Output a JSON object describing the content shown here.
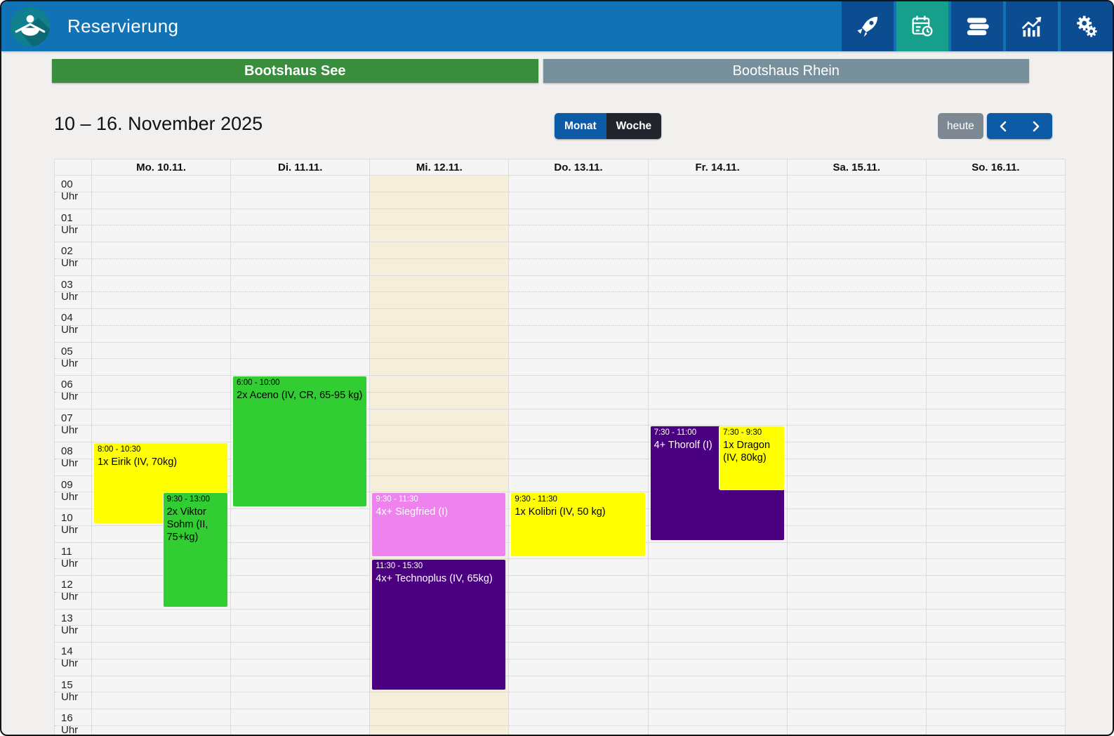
{
  "app": {
    "title": "Reservierung"
  },
  "navbar": {
    "icons": [
      {
        "name": "rocket-icon",
        "active": false
      },
      {
        "name": "calendar-clock-icon",
        "active": true
      },
      {
        "name": "books-icon",
        "active": false
      },
      {
        "name": "chart-icon",
        "active": false
      },
      {
        "name": "settings-gears-icon",
        "active": false
      }
    ],
    "colors": {
      "bar": "#1173b5",
      "button": "#0c4d92",
      "active_button": "#16a08c"
    }
  },
  "tabs": [
    {
      "label": "Bootshaus See",
      "active": true,
      "color": "#388e3c"
    },
    {
      "label": "Bootshaus Rhein",
      "active": false,
      "color": "#78909c"
    }
  ],
  "toolbar": {
    "date_range": "10 – 16. November 2025",
    "view_buttons": [
      {
        "label": "Monat",
        "active": false,
        "color": "#0d5aa7"
      },
      {
        "label": "Woche",
        "active": true,
        "color": "#21262e"
      }
    ],
    "today_label": "heute"
  },
  "calendar": {
    "day_headers": [
      "Mo. 10.11.",
      "Di. 11.11.",
      "Mi. 12.11.",
      "Do. 13.11.",
      "Fr. 14.11.",
      "Sa. 15.11.",
      "So. 16.11."
    ],
    "today_column_index": 2,
    "today_highlight_color": "#f4eedb",
    "hour_labels": [
      "00 Uhr",
      "01 Uhr",
      "02 Uhr",
      "03 Uhr",
      "04 Uhr",
      "05 Uhr",
      "06 Uhr",
      "07 Uhr",
      "08 Uhr",
      "09 Uhr",
      "10 Uhr",
      "11 Uhr",
      "12 Uhr",
      "13 Uhr",
      "14 Uhr",
      "15 Uhr",
      "16 Uhr"
    ],
    "events": [
      {
        "day": 0,
        "time_label": "8:00 - 10:30",
        "title": "1x Eirik (IV, 70kg)",
        "color": "#ffff00",
        "text_color": "#000000",
        "start_h": 8.0,
        "end_h": 10.5,
        "left_pct": 0
      },
      {
        "day": 0,
        "time_label": "9:30 - 13:00",
        "title": "2x Viktor Sohm (II, 75+kg)",
        "color": "#32cd32",
        "text_color": "#000000",
        "start_h": 9.5,
        "end_h": 13.0,
        "left_pct": 50
      },
      {
        "day": 1,
        "time_label": "6:00 - 10:00",
        "title": "2x Aceno (IV, CR, 65-95 kg)",
        "color": "#32cd32",
        "text_color": "#000000",
        "start_h": 6.0,
        "end_h": 10.0,
        "left_pct": 0
      },
      {
        "day": 2,
        "time_label": "9:30 - 11:30",
        "title": "4x+ Siegfried (I)",
        "color": "#ee82ee",
        "text_color": "#ffffff",
        "start_h": 9.5,
        "end_h": 11.5,
        "left_pct": 0
      },
      {
        "day": 2,
        "time_label": "11:30 - 15:30",
        "title": "4x+ Technoplus (IV, 65kg)",
        "color": "#4b0082",
        "text_color": "#ffffff",
        "start_h": 11.5,
        "end_h": 15.5,
        "left_pct": 0
      },
      {
        "day": 3,
        "time_label": "9:30 - 11:30",
        "title": "1x Kolibri (IV, 50 kg)",
        "color": "#ffff00",
        "text_color": "#000000",
        "start_h": 9.5,
        "end_h": 11.5,
        "left_pct": 0
      },
      {
        "day": 4,
        "time_label": "7:30 - 11:00",
        "title": "4+ Thorolf (I)",
        "color": "#4b0082",
        "text_color": "#ffffff",
        "start_h": 7.5,
        "end_h": 11.0,
        "left_pct": 0
      },
      {
        "day": 4,
        "time_label": "7:30 - 9:30",
        "title": "1x Dragon (IV, 80kg)",
        "color": "#ffff00",
        "text_color": "#000000",
        "start_h": 7.5,
        "end_h": 9.5,
        "left_pct": 50
      }
    ]
  }
}
